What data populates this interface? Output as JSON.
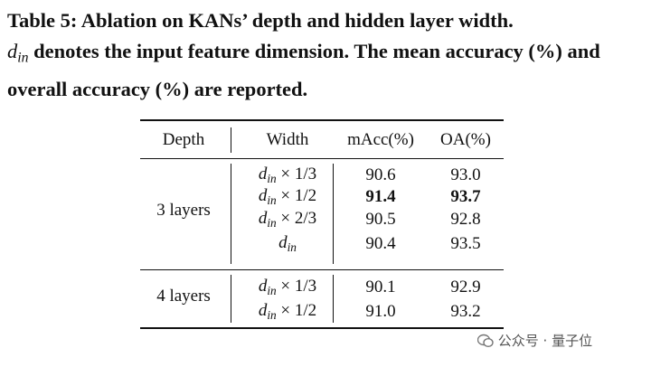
{
  "caption": {
    "label": "Table 5:",
    "text1": "Ablation on KANs’ depth and hidden layer width.",
    "var": {
      "base": "d",
      "sub": "in"
    },
    "text2": "denotes the input feature dimension. The mean accuracy (%) and overall accuracy (%) are reported."
  },
  "table": {
    "header": [
      "Depth",
      "Width",
      "mAcc(%)",
      "OA(%)"
    ],
    "groups": [
      {
        "depth": "3 layers",
        "rows": [
          {
            "width": {
              "base": "d",
              "sub": "in",
              "suffix": "× 1/3"
            },
            "macc": "90.6",
            "oa": "93.0"
          },
          {
            "width": {
              "base": "d",
              "sub": "in",
              "suffix": "× 1/2"
            },
            "macc": "91.4",
            "oa": "93.7"
          },
          {
            "width": {
              "base": "d",
              "sub": "in",
              "suffix": "× 2/3"
            },
            "macc": "90.5",
            "oa": "92.8"
          },
          {
            "width": {
              "base": "d",
              "sub": "in"
            },
            "macc": "90.4",
            "oa": "93.5"
          }
        ]
      },
      {
        "depth": "4 layers",
        "rows": [
          {
            "width": {
              "base": "d",
              "sub": "in",
              "suffix": "× 1/3"
            },
            "macc": "90.1",
            "oa": "92.9"
          },
          {
            "width": {
              "base": "d",
              "sub": "in",
              "suffix": "× 1/2"
            },
            "macc": "91.0",
            "oa": "93.2"
          }
        ]
      }
    ]
  },
  "watermark": "公众号 · 量子位"
}
